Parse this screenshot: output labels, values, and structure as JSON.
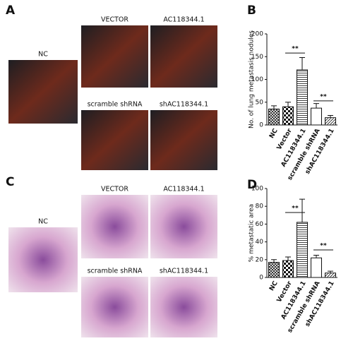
{
  "panels": [
    "A",
    "B",
    "C",
    "D"
  ],
  "photos_a": [
    "NC",
    "VECTOR",
    "AC118344.1",
    "scramble shRNA",
    "shAC118344.1"
  ],
  "photos_c": [
    "NC",
    "VECTOR",
    "AC118344.1",
    "scramble shRNA",
    "shAC118344.1"
  ],
  "chart_data": [
    {
      "type": "bar",
      "ylabel": "No. of lung metastasis nodules",
      "categories": [
        "NC",
        "Vector",
        "AC118344.1",
        "scramble shRNA",
        "shAC118344.1"
      ],
      "values": [
        35,
        40,
        121,
        37,
        16
      ],
      "errors": [
        7,
        10,
        27,
        10,
        5
      ],
      "patterns": [
        "crosshatch",
        "checker",
        "hlines",
        "none",
        "diag"
      ],
      "ylim": [
        0,
        200
      ],
      "yticks": [
        0,
        50,
        100,
        150,
        200
      ],
      "annotations": [
        {
          "text": "**",
          "between": [
            "Vector",
            "AC118344.1"
          ],
          "y": 158
        },
        {
          "text": "**",
          "between": [
            "scramble shRNA",
            "shAC118344.1"
          ],
          "y": 53
        }
      ]
    },
    {
      "type": "bar",
      "ylabel": "% metastatic area",
      "categories": [
        "NC",
        "Vector",
        "AC118344.1",
        "scramble shRNA",
        "shAC118344.1"
      ],
      "values": [
        17,
        19,
        62,
        22,
        5
      ],
      "errors": [
        3,
        4,
        26,
        3,
        2
      ],
      "patterns": [
        "crosshatch",
        "checker",
        "hlines",
        "none",
        "diag"
      ],
      "ylim": [
        0,
        100
      ],
      "yticks": [
        0,
        20,
        40,
        60,
        80,
        100
      ],
      "annotations": [
        {
          "text": "**",
          "between": [
            "Vector",
            "AC118344.1"
          ],
          "y": 73
        },
        {
          "text": "**",
          "between": [
            "scramble shRNA",
            "shAC118344.1"
          ],
          "y": 31
        }
      ]
    }
  ]
}
